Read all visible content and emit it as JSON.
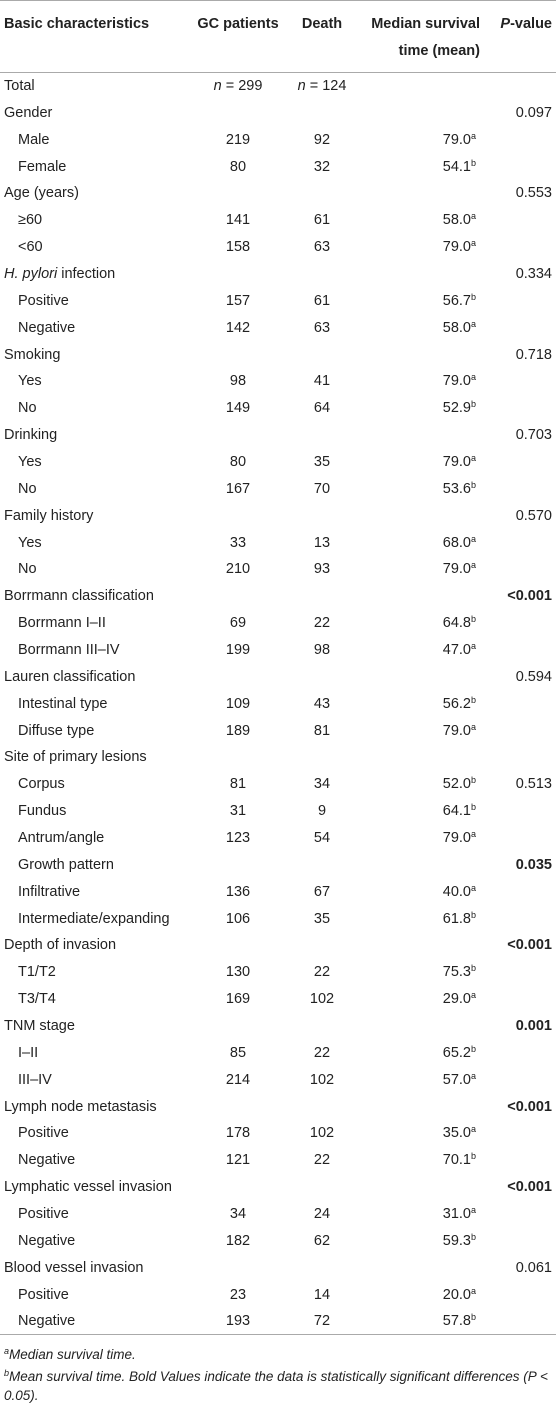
{
  "header": [
    "Basic characteristics",
    "GC patients",
    "Death",
    "Median survival time (mean)",
    {
      "italic": "P",
      "text": "-value"
    }
  ],
  "rows": [
    {
      "label": "Total",
      "gc": {
        "italic": "n",
        "text": " = 299"
      },
      "death": {
        "italic": "n",
        "text": " = 124"
      }
    },
    {
      "label": "Gender",
      "p": "0.097"
    },
    {
      "label": "Male",
      "level": 1,
      "gc": "219",
      "death": "92",
      "median": "79.0",
      "sup": "a"
    },
    {
      "label": "Female",
      "level": 1,
      "gc": "80",
      "death": "32",
      "median": "54.1",
      "sup": "b"
    },
    {
      "label": "Age (years)",
      "p": "0.553"
    },
    {
      "label": "≥60",
      "level": 1,
      "gc": "141",
      "death": "61",
      "median": "58.0",
      "sup": "a"
    },
    {
      "label": "<60",
      "level": 1,
      "gc": "158",
      "death": "63",
      "median": "79.0",
      "sup": "a"
    },
    {
      "label": {
        "italic": "H. pylori",
        "text": " infection"
      },
      "p": "0.334"
    },
    {
      "label": "Positive",
      "level": 1,
      "gc": "157",
      "death": "61",
      "median": "56.7",
      "sup": "b"
    },
    {
      "label": "Negative",
      "level": 1,
      "gc": "142",
      "death": "63",
      "median": "58.0",
      "sup": "a"
    },
    {
      "label": "Smoking",
      "p": "0.718"
    },
    {
      "label": "Yes",
      "level": 1,
      "gc": "98",
      "death": "41",
      "median": "79.0",
      "sup": "a"
    },
    {
      "label": "No",
      "level": 1,
      "gc": "149",
      "death": "64",
      "median": "52.9",
      "sup": "b"
    },
    {
      "label": "Drinking",
      "p": "0.703"
    },
    {
      "label": "Yes",
      "level": 1,
      "gc": "80",
      "death": "35",
      "median": "79.0",
      "sup": "a"
    },
    {
      "label": "No",
      "level": 1,
      "gc": "167",
      "death": "70",
      "median": "53.6",
      "sup": "b"
    },
    {
      "label": "Family history",
      "p": "0.570"
    },
    {
      "label": "Yes",
      "level": 1,
      "gc": "33",
      "death": "13",
      "median": "68.0",
      "sup": "a"
    },
    {
      "label": "No",
      "level": 1,
      "gc": "210",
      "death": "93",
      "median": "79.0",
      "sup": "a"
    },
    {
      "label": "Borrmann classification",
      "p": "<0.001",
      "bold": true
    },
    {
      "label": "Borrmann I–II",
      "level": 1,
      "gc": "69",
      "death": "22",
      "median": "64.8",
      "sup": "b"
    },
    {
      "label": "Borrmann III–IV",
      "level": 1,
      "gc": "199",
      "death": "98",
      "median": "47.0",
      "sup": "a"
    },
    {
      "label": "Lauren classification",
      "p": "0.594"
    },
    {
      "label": "Intestinal type",
      "level": 1,
      "gc": "109",
      "death": "43",
      "median": "56.2",
      "sup": "b"
    },
    {
      "label": "Diffuse type",
      "level": 1,
      "gc": "189",
      "death": "81",
      "median": "79.0",
      "sup": "a"
    },
    {
      "label": "Site of primary lesions"
    },
    {
      "label": "Corpus",
      "level": 1,
      "gc": "81",
      "death": "34",
      "median": "52.0",
      "sup": "b",
      "p": "0.513"
    },
    {
      "label": "Fundus",
      "level": 1,
      "gc": "31",
      "death": "9",
      "median": "64.1",
      "sup": "b"
    },
    {
      "label": "Antrum/angle",
      "level": 1,
      "gc": "123",
      "death": "54",
      "median": "79.0",
      "sup": "a"
    },
    {
      "label": "Growth pattern",
      "level": 1,
      "p": "0.035",
      "bold": true
    },
    {
      "label": "Infiltrative",
      "level": 1,
      "gc": "136",
      "death": "67",
      "median": "40.0",
      "sup": "a"
    },
    {
      "label": "Intermediate/expanding",
      "level": 1,
      "gc": "106",
      "death": "35",
      "median": "61.8",
      "sup": "b"
    },
    {
      "label": "Depth of invasion",
      "p": "<0.001",
      "bold": true
    },
    {
      "label": "T1/T2",
      "level": 1,
      "gc": "130",
      "death": "22",
      "median": "75.3",
      "sup": "b"
    },
    {
      "label": "T3/T4",
      "level": 1,
      "gc": "169",
      "death": "102",
      "median": "29.0",
      "sup": "a"
    },
    {
      "label": "TNM stage",
      "p": "0.001",
      "bold": true
    },
    {
      "label": "I–II",
      "level": 1,
      "gc": "85",
      "death": "22",
      "median": "65.2",
      "sup": "b"
    },
    {
      "label": "III–IV",
      "level": 1,
      "gc": "214",
      "death": "102",
      "median": "57.0",
      "sup": "a"
    },
    {
      "label": "Lymph node metastasis",
      "p": "<0.001",
      "bold": true
    },
    {
      "label": "Positive",
      "level": 1,
      "gc": "178",
      "death": "102",
      "median": "35.0",
      "sup": "a"
    },
    {
      "label": "Negative",
      "level": 1,
      "gc": "121",
      "death": "22",
      "median": "70.1",
      "sup": "b"
    },
    {
      "label": "Lymphatic vessel invasion",
      "p": "<0.001",
      "bold": true
    },
    {
      "label": "Positive",
      "level": 1,
      "gc": "34",
      "death": "24",
      "median": "31.0",
      "sup": "a"
    },
    {
      "label": "Negative",
      "level": 1,
      "gc": "182",
      "death": "62",
      "median": "59.3",
      "sup": "b"
    },
    {
      "label": "Blood vessel invasion",
      "p": "0.061"
    },
    {
      "label": "Positive",
      "level": 1,
      "gc": "23",
      "death": "14",
      "median": "20.0",
      "sup": "a"
    },
    {
      "label": "Negative",
      "level": 1,
      "gc": "193",
      "death": "72",
      "median": "57.8",
      "sup": "b"
    }
  ],
  "footnotes": [
    {
      "sup": "a",
      "text": "Median survival time."
    },
    {
      "sup": "b",
      "text": "Mean survival time. Bold Values indicate the data is statistically significant differences (P < 0.05)."
    }
  ]
}
